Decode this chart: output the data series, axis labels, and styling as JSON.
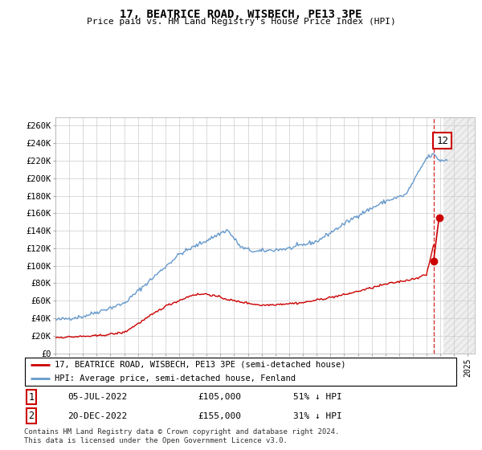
{
  "title": "17, BEATRICE ROAD, WISBECH, PE13 3PE",
  "subtitle": "Price paid vs. HM Land Registry's House Price Index (HPI)",
  "ylabel_ticks": [
    "£0",
    "£20K",
    "£40K",
    "£60K",
    "£80K",
    "£100K",
    "£120K",
    "£140K",
    "£160K",
    "£180K",
    "£200K",
    "£220K",
    "£240K",
    "£260K"
  ],
  "ytick_values": [
    0,
    20000,
    40000,
    60000,
    80000,
    100000,
    120000,
    140000,
    160000,
    180000,
    200000,
    220000,
    240000,
    260000
  ],
  "ylim": [
    0,
    270000
  ],
  "xlim_start": 1995.0,
  "xlim_end": 2025.5,
  "legend_line1": "17, BEATRICE ROAD, WISBECH, PE13 3PE (semi-detached house)",
  "legend_line2": "HPI: Average price, semi-detached house, Fenland",
  "transaction1_date": "05-JUL-2022",
  "transaction1_price": "£105,000",
  "transaction1_hpi": "51% ↓ HPI",
  "transaction2_date": "20-DEC-2022",
  "transaction2_price": "£155,000",
  "transaction2_hpi": "31% ↓ HPI",
  "footnote": "Contains HM Land Registry data © Crown copyright and database right 2024.\nThis data is licensed under the Open Government Licence v3.0.",
  "red_color": "#cc0000",
  "blue_color": "#6699cc",
  "grid_color": "#cccccc",
  "label_box_color": "#cc0000",
  "transaction1_x": 2022.5,
  "transaction1_y": 105000,
  "transaction2_x": 2022.9,
  "transaction2_y": 155000,
  "hatch_start": 2023.25
}
